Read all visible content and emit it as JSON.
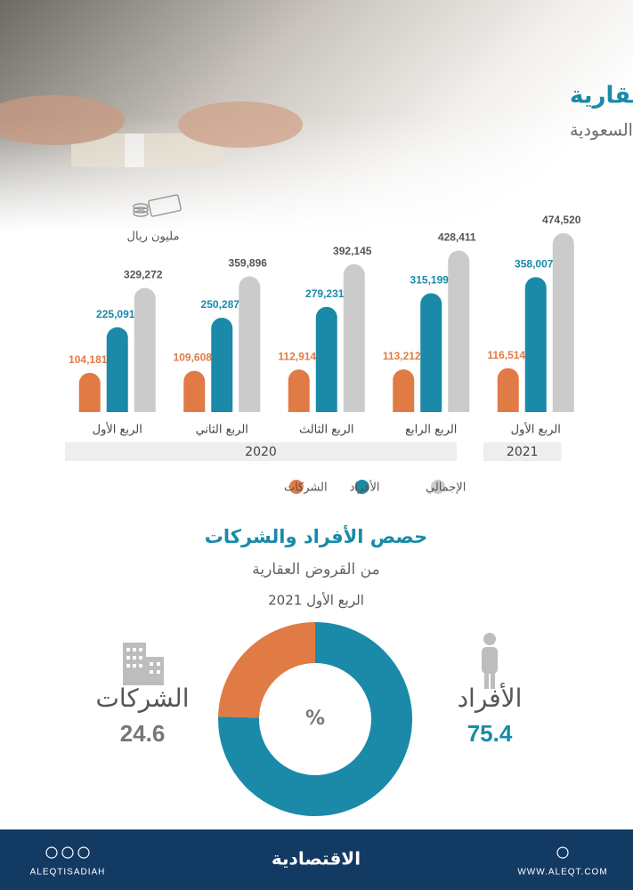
{
  "header": {
    "title": "القروض العقارية",
    "subtitle": "المقدمة من المصارف في السعودية"
  },
  "chart_data": [
    {
      "type": "bar",
      "unit": "مليون ريال",
      "categories": [
        "الربع الأول",
        "الربع الثاني",
        "الربع الثالث",
        "الربع الرابع",
        "الربع الأول"
      ],
      "groups": [
        {
          "label": "2020",
          "count": 4
        },
        {
          "label": "2021",
          "count": 1
        }
      ],
      "series": [
        {
          "name": "الشركات",
          "color": "#e07b45",
          "values": [
            104181,
            109608,
            112914,
            113212,
            116514
          ],
          "value_labels": [
            "104,181",
            "109,608",
            "112,914",
            "113,212",
            "116,514"
          ]
        },
        {
          "name": "الأفراد",
          "color": "#1a8aa8",
          "values": [
            225091,
            250287,
            279231,
            315199,
            358007
          ],
          "value_labels": [
            "225,091",
            "250,287",
            "279,231",
            "315,199",
            "358,007"
          ]
        },
        {
          "name": "الإجمالي",
          "color": "#cbcbcb",
          "values": [
            329272,
            359896,
            392145,
            428411,
            474520
          ],
          "value_labels": [
            "329,272",
            "359,896",
            "392,145",
            "428,411",
            "474,520"
          ]
        }
      ]
    },
    {
      "type": "donut",
      "title": "حصص الأفراد والشركات",
      "subtitle": "من القروض العقارية",
      "period": "الربع الأول 2021",
      "center_label": "%",
      "categories": [
        "الأفراد",
        "الشركات"
      ],
      "values": [
        75.4,
        24.6
      ],
      "colors": [
        "#1a8aa8",
        "#e07b45"
      ]
    }
  ],
  "footer": {
    "social": "ALEQTISADIAH",
    "brand": "الاقتصادية",
    "website": "WWW.ALEQT.COM"
  }
}
